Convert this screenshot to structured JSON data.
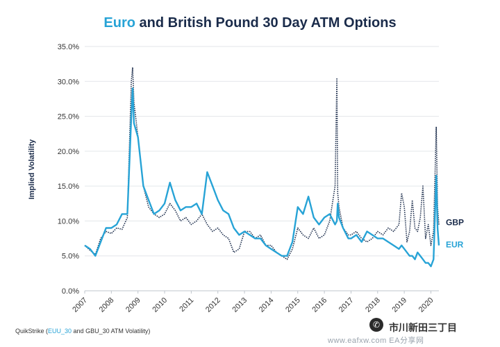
{
  "chart_data": {
    "type": "line",
    "title": {
      "accent": "Euro",
      "rest": " and British Pound 30 Day ATM Options"
    },
    "ylabel": "Implied Volatility",
    "xlabel": "",
    "ylim": [
      0,
      35
    ],
    "xlim": [
      2007.0,
      2020.3
    ],
    "yticks": [
      "0.0%",
      "5.0%",
      "10.0%",
      "15.0%",
      "20.0%",
      "25.0%",
      "30.0%",
      "35.0%"
    ],
    "xticks": [
      "2007",
      "2008",
      "2009",
      "2010",
      "2011",
      "2012",
      "2013",
      "2014",
      "2015",
      "2016",
      "2017",
      "2018",
      "2019",
      "2020"
    ],
    "grid": true,
    "series": [
      {
        "name": "GBP",
        "color": "#1a2b4a",
        "style": "dotted",
        "x": [
          2007.0,
          2007.2,
          2007.4,
          2007.6,
          2007.8,
          2008.0,
          2008.2,
          2008.4,
          2008.6,
          2008.75,
          2008.8,
          2008.85,
          2009.0,
          2009.2,
          2009.4,
          2009.6,
          2009.8,
          2010.0,
          2010.2,
          2010.4,
          2010.6,
          2010.8,
          2011.0,
          2011.2,
          2011.4,
          2011.6,
          2011.8,
          2012.0,
          2012.2,
          2012.4,
          2012.6,
          2012.8,
          2013.0,
          2013.2,
          2013.4,
          2013.6,
          2013.8,
          2014.0,
          2014.2,
          2014.4,
          2014.6,
          2014.8,
          2015.0,
          2015.2,
          2015.4,
          2015.6,
          2015.8,
          2016.0,
          2016.2,
          2016.4,
          2016.47,
          2016.5,
          2016.55,
          2016.7,
          2016.9,
          2017.0,
          2017.2,
          2017.4,
          2017.6,
          2017.8,
          2018.0,
          2018.2,
          2018.4,
          2018.6,
          2018.8,
          2018.9,
          2019.0,
          2019.1,
          2019.2,
          2019.3,
          2019.4,
          2019.5,
          2019.6,
          2019.7,
          2019.8,
          2019.9,
          2020.0,
          2020.1,
          2020.2,
          2020.25,
          2020.3
        ],
        "values": [
          6.5,
          5.8,
          5.2,
          7.5,
          8.5,
          8.2,
          9.0,
          8.8,
          10.5,
          30.0,
          32.0,
          27.0,
          22.0,
          15.0,
          12.0,
          11.0,
          10.5,
          11.0,
          12.5,
          11.5,
          10.0,
          10.5,
          9.5,
          10.0,
          11.0,
          9.5,
          8.5,
          9.0,
          8.0,
          7.5,
          5.5,
          6.0,
          8.5,
          8.5,
          7.5,
          8.0,
          6.5,
          6.5,
          5.5,
          5.0,
          4.5,
          6.0,
          9.0,
          8.0,
          7.5,
          9.0,
          7.5,
          8.0,
          10.0,
          15.0,
          30.5,
          14.0,
          12.0,
          9.0,
          8.0,
          8.0,
          8.5,
          7.5,
          7.0,
          7.5,
          8.5,
          8.0,
          9.0,
          8.5,
          9.5,
          14.0,
          12.0,
          7.0,
          8.5,
          13.0,
          9.0,
          8.5,
          10.5,
          15.0,
          7.5,
          9.5,
          6.5,
          8.5,
          23.5,
          12.0,
          9.5
        ]
      },
      {
        "name": "EUR",
        "color": "#27a3d6",
        "style": "solid",
        "x": [
          2007.0,
          2007.2,
          2007.4,
          2007.6,
          2007.8,
          2008.0,
          2008.2,
          2008.4,
          2008.6,
          2008.75,
          2008.8,
          2008.85,
          2009.0,
          2009.2,
          2009.4,
          2009.6,
          2009.8,
          2010.0,
          2010.2,
          2010.4,
          2010.6,
          2010.8,
          2011.0,
          2011.2,
          2011.4,
          2011.6,
          2011.8,
          2012.0,
          2012.2,
          2012.4,
          2012.6,
          2012.8,
          2013.0,
          2013.2,
          2013.4,
          2013.6,
          2013.8,
          2014.0,
          2014.2,
          2014.4,
          2014.6,
          2014.8,
          2015.0,
          2015.2,
          2015.4,
          2015.6,
          2015.8,
          2016.0,
          2016.2,
          2016.4,
          2016.47,
          2016.5,
          2016.55,
          2016.7,
          2016.9,
          2017.0,
          2017.2,
          2017.4,
          2017.6,
          2017.8,
          2018.0,
          2018.2,
          2018.4,
          2018.6,
          2018.8,
          2018.9,
          2019.0,
          2019.1,
          2019.2,
          2019.3,
          2019.4,
          2019.5,
          2019.6,
          2019.7,
          2019.8,
          2019.9,
          2020.0,
          2020.1,
          2020.2,
          2020.25,
          2020.3
        ],
        "values": [
          6.5,
          6.0,
          5.0,
          7.0,
          9.0,
          9.0,
          9.5,
          11.0,
          11.0,
          25.0,
          29.0,
          24.0,
          22.0,
          15.0,
          13.0,
          11.0,
          11.5,
          12.5,
          15.5,
          13.0,
          11.5,
          12.0,
          12.0,
          12.5,
          11.0,
          17.0,
          15.0,
          13.0,
          11.5,
          11.0,
          9.0,
          8.0,
          8.5,
          8.0,
          7.5,
          7.5,
          6.5,
          6.0,
          5.5,
          5.0,
          5.0,
          7.0,
          12.0,
          11.0,
          13.5,
          10.5,
          9.5,
          10.5,
          11.0,
          9.5,
          10.0,
          12.5,
          10.5,
          9.0,
          7.5,
          7.5,
          8.0,
          7.0,
          8.5,
          8.0,
          7.5,
          7.5,
          7.0,
          6.5,
          6.0,
          6.5,
          6.0,
          5.5,
          5.0,
          5.0,
          4.5,
          5.5,
          5.0,
          4.5,
          4.0,
          4.0,
          3.5,
          4.5,
          16.5,
          9.0,
          6.5
        ]
      }
    ]
  },
  "footer": {
    "prefix": "QuikStrike (",
    "accent": "EUU_30",
    "suffix": " and GBU_30 ATM Volatility)"
  },
  "watermark": {
    "text": "市川新田三丁目",
    "url": "www.eafxw.com  EA分享网",
    "icon": "wechat-icon"
  }
}
